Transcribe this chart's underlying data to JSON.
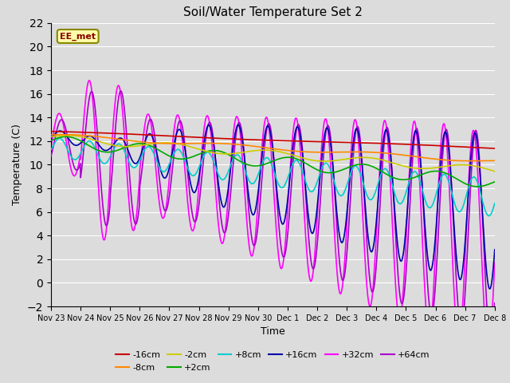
{
  "title": "Soil/Water Temperature Set 2",
  "xlabel": "Time",
  "ylabel": "Temperature (C)",
  "ylim": [
    -2,
    22
  ],
  "yticks": [
    -2,
    0,
    2,
    4,
    6,
    8,
    10,
    12,
    14,
    16,
    18,
    20,
    22
  ],
  "annotation": "EE_met",
  "background_color": "#dcdcdc",
  "plot_bg_color": "#dcdcdc",
  "grid_color": "#ffffff",
  "series": {
    "-16cm": {
      "color": "#cc0000",
      "lw": 1.2
    },
    "-8cm": {
      "color": "#ff8800",
      "lw": 1.2
    },
    "-2cm": {
      "color": "#cccc00",
      "lw": 1.2
    },
    "+2cm": {
      "color": "#00aa00",
      "lw": 1.2
    },
    "+8cm": {
      "color": "#00cccc",
      "lw": 1.2
    },
    "+16cm": {
      "color": "#0000aa",
      "lw": 1.2
    },
    "+32cm": {
      "color": "#ff00ff",
      "lw": 1.2
    },
    "+64cm": {
      "color": "#aa00cc",
      "lw": 1.2
    }
  },
  "xtick_labels": [
    "Nov 23",
    "Nov 24",
    "Nov 25",
    "Nov 26",
    "Nov 27",
    "Nov 28",
    "Nov 29",
    "Nov 30",
    "Dec 1",
    "Dec 2",
    "Dec 3",
    "Dec 4",
    "Dec 5",
    "Dec 6",
    "Dec 7",
    "Dec 8"
  ],
  "figsize": [
    6.4,
    4.8
  ],
  "dpi": 100
}
